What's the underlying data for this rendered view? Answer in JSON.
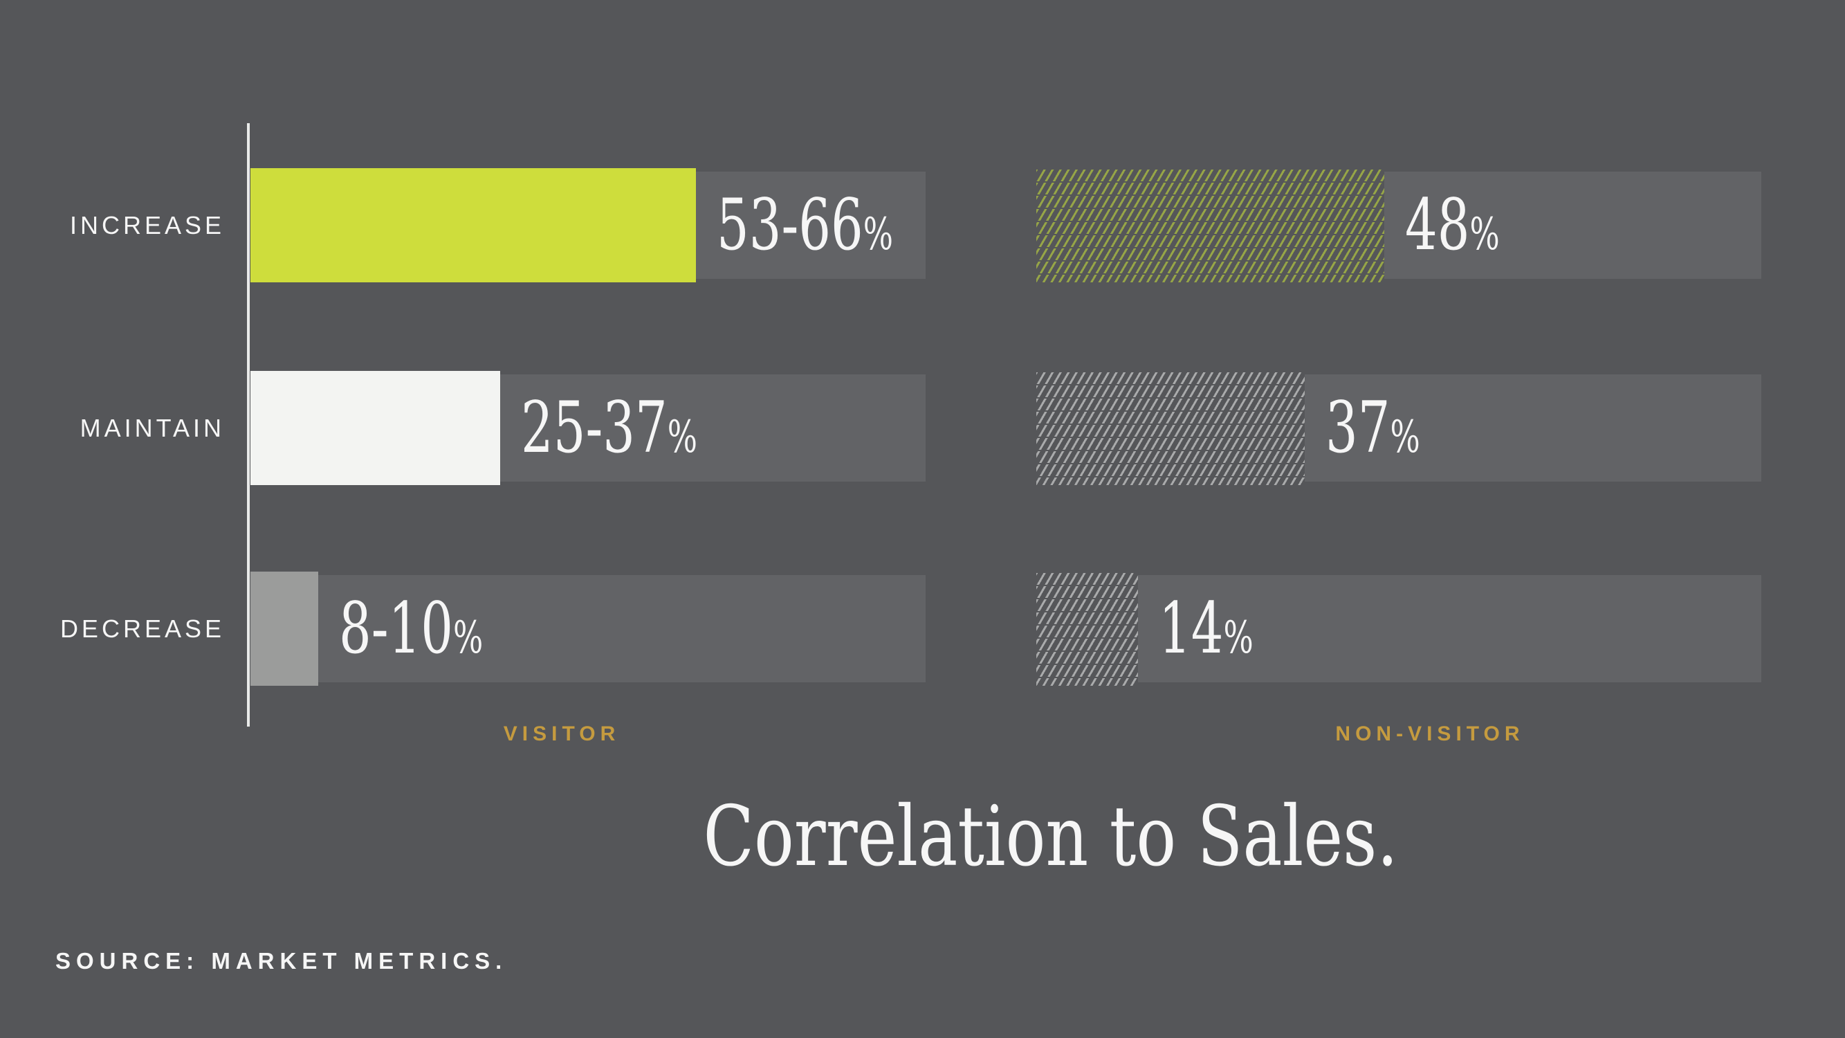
{
  "page": {
    "title": "Correlation to Sales.",
    "source_note": "SOURCE: MARKET METRICS."
  },
  "chart_data": {
    "type": "bar",
    "orientation": "horizontal",
    "title": "Correlation to Sales.",
    "source": "SOURCE: MARKET METRICS.",
    "categories": [
      "INCREASE",
      "MAINTAIN",
      "DECREASE"
    ],
    "x_axis": {
      "min": 0,
      "max": 100,
      "unit": "%",
      "gridlines": false,
      "baseline": "left-vertical-line"
    },
    "legend_position": "caption-under-each-column",
    "series": [
      {
        "name": "VISITOR",
        "fill": "solid",
        "values_pct": [
          66,
          37,
          10
        ],
        "value_labels": [
          "53-66%",
          "25-37%",
          "8-10%"
        ],
        "display": [
          {
            "main": "53-66",
            "suffix": "%"
          },
          {
            "main": "25-37",
            "suffix": "%"
          },
          {
            "main": "8-10",
            "suffix": "%"
          }
        ]
      },
      {
        "name": "NON-VISITOR",
        "fill": "diagonal-hatch",
        "values_pct": [
          48,
          37,
          14
        ],
        "value_labels": [
          "48%",
          "37%",
          "14%"
        ],
        "display": [
          {
            "main": "48",
            "suffix": "%"
          },
          {
            "main": "37",
            "suffix": "%"
          },
          {
            "main": "14",
            "suffix": "%"
          }
        ]
      }
    ]
  },
  "colors": {
    "background": "#555659",
    "track": "#626366",
    "bar_increase": "#cedd3c",
    "bar_maintain": "#f3f4f2",
    "bar_decrease": "#9b9c9b",
    "hatch_green": "#96a547",
    "hatch_gray": "#a9aaab",
    "accent_gold": "#c59b3f",
    "axis_line": "#e9eae9",
    "text_primary": "#f6f6f6"
  }
}
